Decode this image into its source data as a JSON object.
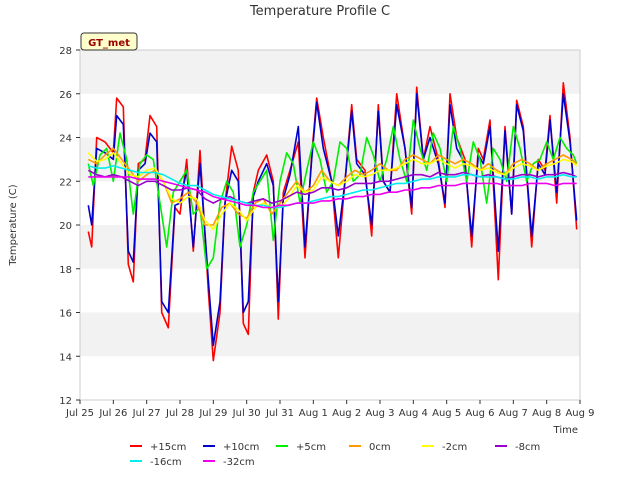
{
  "chart_data": {
    "type": "line",
    "title": "Temperature Profile C",
    "xlabel": "Time",
    "ylabel": "Temperature (C)",
    "ylim": [
      12,
      28
    ],
    "yticks": [
      12,
      14,
      16,
      18,
      20,
      22,
      24,
      26,
      28
    ],
    "xlim": [
      0,
      15
    ],
    "xtick_labels": [
      "Jul 25",
      "Jul 26",
      "Jul 27",
      "Jul 28",
      "Jul 29",
      "Jul 30",
      "Jul 31",
      "Aug 1",
      "Aug 2",
      "Aug 3",
      "Aug 4",
      "Aug 5",
      "Aug 6",
      "Aug 7",
      "Aug 8",
      "Aug 9"
    ],
    "x_unit": "days since Jul 25",
    "station_badge": "GT_met",
    "grid": "horizontal bands",
    "legend_position": "bottom",
    "series": [
      {
        "name": "+15cm",
        "color": "#ff0000",
        "x": [
          0.25,
          0.35,
          0.5,
          0.75,
          1.0,
          1.1,
          1.3,
          1.45,
          1.6,
          1.75,
          1.95,
          2.1,
          2.3,
          2.45,
          2.65,
          2.85,
          3.0,
          3.2,
          3.4,
          3.6,
          3.85,
          4.0,
          4.2,
          4.35,
          4.55,
          4.75,
          4.9,
          5.05,
          5.2,
          5.35,
          5.6,
          5.8,
          5.95,
          6.1,
          6.3,
          6.55,
          6.75,
          6.95,
          7.1,
          7.3,
          7.55,
          7.75,
          7.95,
          8.15,
          8.3,
          8.55,
          8.75,
          8.95,
          9.1,
          9.3,
          9.5,
          9.75,
          9.95,
          10.1,
          10.3,
          10.5,
          10.75,
          10.95,
          11.1,
          11.3,
          11.55,
          11.75,
          11.95,
          12.1,
          12.3,
          12.55,
          12.75,
          12.95,
          13.1,
          13.3,
          13.55,
          13.75,
          13.95,
          14.1,
          14.3,
          14.5,
          14.7,
          14.9
        ],
        "y": [
          19.7,
          19.0,
          24.0,
          23.8,
          23.3,
          25.8,
          25.4,
          18.2,
          17.4,
          22.8,
          23.0,
          25.0,
          24.5,
          16.0,
          15.3,
          20.8,
          20.5,
          23.0,
          18.8,
          23.4,
          17.0,
          13.8,
          16.0,
          21.0,
          23.6,
          22.5,
          15.5,
          15.0,
          21.5,
          22.5,
          23.2,
          22.0,
          15.7,
          21.5,
          22.5,
          23.8,
          18.5,
          23.2,
          25.8,
          24.0,
          22.0,
          18.5,
          22.0,
          25.5,
          23.0,
          22.5,
          19.5,
          25.5,
          22.0,
          21.5,
          26.0,
          23.5,
          20.5,
          26.3,
          23.0,
          24.5,
          23.0,
          20.8,
          26.0,
          24.0,
          23.0,
          19.0,
          23.5,
          23.0,
          24.8,
          17.5,
          24.5,
          20.5,
          25.7,
          24.5,
          19.0,
          23.0,
          22.5,
          25.0,
          21.0,
          26.5,
          24.0,
          19.8
        ]
      },
      {
        "name": "+10cm",
        "color": "#0000cc",
        "x": [
          0.25,
          0.35,
          0.5,
          0.75,
          1.0,
          1.1,
          1.3,
          1.45,
          1.6,
          1.75,
          1.95,
          2.1,
          2.3,
          2.45,
          2.65,
          2.85,
          3.0,
          3.2,
          3.4,
          3.6,
          3.85,
          4.0,
          4.2,
          4.35,
          4.55,
          4.75,
          4.9,
          5.05,
          5.2,
          5.35,
          5.6,
          5.8,
          5.95,
          6.1,
          6.3,
          6.55,
          6.75,
          6.95,
          7.1,
          7.3,
          7.55,
          7.75,
          7.95,
          8.15,
          8.3,
          8.55,
          8.75,
          8.95,
          9.1,
          9.3,
          9.5,
          9.75,
          9.95,
          10.1,
          10.3,
          10.5,
          10.75,
          10.95,
          11.1,
          11.3,
          11.55,
          11.75,
          11.95,
          12.1,
          12.3,
          12.55,
          12.75,
          12.95,
          13.1,
          13.3,
          13.55,
          13.75,
          13.95,
          14.1,
          14.3,
          14.5,
          14.7,
          14.9
        ],
        "y": [
          20.9,
          20.0,
          23.5,
          23.3,
          23.0,
          25.0,
          24.6,
          18.8,
          18.3,
          22.5,
          22.8,
          24.2,
          23.8,
          16.5,
          16.0,
          20.9,
          21.0,
          22.5,
          19.0,
          22.8,
          17.5,
          14.5,
          16.5,
          21.0,
          22.5,
          22.0,
          16.0,
          16.5,
          21.3,
          22.0,
          22.8,
          21.8,
          16.5,
          21.2,
          22.3,
          24.5,
          19.0,
          23.0,
          25.6,
          23.5,
          22.0,
          19.5,
          22.0,
          25.2,
          22.8,
          22.3,
          20.0,
          25.2,
          22.0,
          21.5,
          25.5,
          23.5,
          20.8,
          26.0,
          23.0,
          24.0,
          22.8,
          21.0,
          25.5,
          23.5,
          22.8,
          19.5,
          23.2,
          22.8,
          24.5,
          18.8,
          24.3,
          20.5,
          25.5,
          24.3,
          19.5,
          22.8,
          22.3,
          24.8,
          21.5,
          26.0,
          23.8,
          20.2
        ]
      },
      {
        "name": "+5cm",
        "color": "#00ee00",
        "x": [
          0.25,
          0.4,
          0.6,
          0.8,
          1.0,
          1.2,
          1.4,
          1.6,
          1.8,
          2.0,
          2.2,
          2.4,
          2.6,
          2.8,
          3.0,
          3.2,
          3.4,
          3.6,
          3.8,
          4.0,
          4.2,
          4.4,
          4.6,
          4.8,
          5.0,
          5.2,
          5.4,
          5.6,
          5.8,
          6.0,
          6.2,
          6.4,
          6.6,
          6.8,
          7.0,
          7.2,
          7.4,
          7.6,
          7.8,
          8.0,
          8.2,
          8.4,
          8.6,
          8.8,
          9.0,
          9.2,
          9.4,
          9.6,
          9.8,
          10.0,
          10.2,
          10.4,
          10.6,
          10.8,
          11.0,
          11.2,
          11.4,
          11.6,
          11.8,
          12.0,
          12.2,
          12.4,
          12.6,
          12.8,
          13.0,
          13.2,
          13.4,
          13.6,
          13.8,
          14.0,
          14.2,
          14.4,
          14.6,
          14.8,
          14.9
        ],
        "y": [
          22.8,
          21.8,
          23.2,
          23.5,
          22.0,
          24.2,
          23.0,
          20.5,
          22.8,
          23.2,
          23.0,
          21.0,
          19.0,
          21.5,
          22.0,
          22.5,
          20.5,
          20.8,
          18.0,
          18.5,
          21.0,
          22.0,
          21.5,
          19.0,
          20.0,
          21.5,
          22.0,
          22.5,
          19.3,
          22.0,
          23.3,
          22.8,
          21.0,
          22.5,
          23.8,
          23.0,
          21.5,
          22.0,
          23.8,
          23.5,
          22.0,
          22.3,
          24.0,
          23.2,
          22.0,
          23.0,
          24.5,
          23.0,
          22.0,
          24.8,
          23.5,
          22.5,
          24.2,
          23.5,
          22.0,
          24.5,
          23.5,
          22.0,
          23.8,
          23.0,
          21.0,
          23.5,
          23.0,
          22.0,
          24.5,
          23.5,
          22.0,
          22.8,
          23.0,
          23.8,
          23.0,
          24.0,
          23.5,
          23.2,
          22.8
        ]
      },
      {
        "name": "0cm",
        "color": "#ff9900",
        "x": [
          0.25,
          0.5,
          0.75,
          1.0,
          1.25,
          1.5,
          1.75,
          2.0,
          2.25,
          2.5,
          2.75,
          3.0,
          3.25,
          3.5,
          3.75,
          4.0,
          4.25,
          4.5,
          4.75,
          5.0,
          5.25,
          5.5,
          5.75,
          6.0,
          6.25,
          6.5,
          6.75,
          7.0,
          7.25,
          7.5,
          7.75,
          8.0,
          8.25,
          8.5,
          8.75,
          9.0,
          9.25,
          9.5,
          9.75,
          10.0,
          10.25,
          10.5,
          10.75,
          11.0,
          11.25,
          11.5,
          11.75,
          12.0,
          12.25,
          12.5,
          12.75,
          13.0,
          13.25,
          13.5,
          13.75,
          14.0,
          14.25,
          14.5,
          14.75,
          14.9
        ],
        "y": [
          23.0,
          22.8,
          23.2,
          23.5,
          23.0,
          22.5,
          22.0,
          22.3,
          22.5,
          22.0,
          21.0,
          21.2,
          21.5,
          21.0,
          20.0,
          20.0,
          20.8,
          21.0,
          20.5,
          20.3,
          21.0,
          21.2,
          20.5,
          21.0,
          21.5,
          22.0,
          21.5,
          21.8,
          22.5,
          22.0,
          21.8,
          22.2,
          22.5,
          22.3,
          22.5,
          22.8,
          22.5,
          22.5,
          23.0,
          23.2,
          23.0,
          22.8,
          23.2,
          23.0,
          22.8,
          23.0,
          22.8,
          22.5,
          22.8,
          22.5,
          22.3,
          22.8,
          23.0,
          22.8,
          22.5,
          22.8,
          23.0,
          23.2,
          23.0,
          22.8
        ]
      },
      {
        "name": "-2cm",
        "color": "#ffff00",
        "x": [
          0.25,
          0.5,
          0.75,
          1.0,
          1.25,
          1.5,
          1.75,
          2.0,
          2.25,
          2.5,
          2.75,
          3.0,
          3.25,
          3.5,
          3.75,
          4.0,
          4.25,
          4.5,
          4.75,
          5.0,
          5.25,
          5.5,
          5.75,
          6.0,
          6.25,
          6.5,
          6.75,
          7.0,
          7.25,
          7.5,
          7.75,
          8.0,
          8.25,
          8.5,
          8.75,
          9.0,
          9.25,
          9.5,
          9.75,
          10.0,
          10.25,
          10.5,
          10.75,
          11.0,
          11.25,
          11.5,
          11.75,
          12.0,
          12.25,
          12.5,
          12.75,
          13.0,
          13.25,
          13.5,
          13.75,
          14.0,
          14.25,
          14.5,
          14.75,
          14.9
        ],
        "y": [
          23.3,
          22.9,
          23.0,
          23.3,
          22.8,
          22.3,
          22.2,
          22.5,
          22.6,
          22.0,
          21.2,
          21.0,
          21.3,
          21.2,
          20.2,
          19.8,
          20.5,
          21.0,
          20.7,
          20.2,
          20.8,
          21.0,
          20.8,
          20.8,
          21.2,
          21.8,
          21.5,
          21.6,
          22.2,
          22.0,
          21.8,
          22.0,
          22.3,
          22.2,
          22.3,
          22.5,
          22.5,
          22.6,
          22.8,
          23.0,
          22.8,
          22.8,
          23.0,
          22.8,
          22.6,
          22.8,
          22.7,
          22.5,
          22.6,
          22.4,
          22.3,
          22.6,
          22.8,
          22.7,
          22.5,
          22.7,
          22.8,
          23.0,
          22.9,
          22.7
        ]
      },
      {
        "name": "-8cm",
        "color": "#9900cc",
        "x": [
          0.25,
          0.5,
          0.75,
          1.0,
          1.25,
          1.5,
          1.75,
          2.0,
          2.25,
          2.5,
          2.75,
          3.0,
          3.25,
          3.5,
          3.75,
          4.0,
          4.25,
          4.5,
          4.75,
          5.0,
          5.25,
          5.5,
          5.75,
          6.0,
          6.25,
          6.5,
          6.75,
          7.0,
          7.25,
          7.5,
          7.75,
          8.0,
          8.25,
          8.5,
          8.75,
          9.0,
          9.25,
          9.5,
          9.75,
          10.0,
          10.25,
          10.5,
          10.75,
          11.0,
          11.25,
          11.5,
          11.75,
          12.0,
          12.25,
          12.5,
          12.75,
          13.0,
          13.25,
          13.5,
          13.75,
          14.0,
          14.25,
          14.5,
          14.75,
          14.9
        ],
        "y": [
          22.5,
          22.3,
          22.2,
          22.3,
          22.2,
          22.0,
          21.8,
          22.0,
          22.0,
          21.8,
          21.6,
          21.6,
          21.7,
          21.6,
          21.2,
          21.0,
          21.2,
          21.3,
          21.1,
          21.0,
          21.1,
          21.2,
          21.0,
          21.1,
          21.3,
          21.5,
          21.4,
          21.5,
          21.7,
          21.7,
          21.6,
          21.7,
          21.9,
          21.9,
          21.9,
          22.0,
          22.0,
          22.1,
          22.2,
          22.3,
          22.3,
          22.2,
          22.4,
          22.3,
          22.3,
          22.4,
          22.3,
          22.2,
          22.3,
          22.2,
          22.1,
          22.2,
          22.3,
          22.3,
          22.2,
          22.3,
          22.3,
          22.4,
          22.3,
          22.2
        ]
      },
      {
        "name": "-16cm",
        "color": "#00eeee",
        "x": [
          0.25,
          0.5,
          0.75,
          1.0,
          1.25,
          1.5,
          1.75,
          2.0,
          2.25,
          2.5,
          2.75,
          3.0,
          3.25,
          3.5,
          3.75,
          4.0,
          4.25,
          4.5,
          4.75,
          5.0,
          5.25,
          5.5,
          5.75,
          6.0,
          6.25,
          6.5,
          6.75,
          7.0,
          7.25,
          7.5,
          7.75,
          8.0,
          8.25,
          8.5,
          8.75,
          9.0,
          9.25,
          9.5,
          9.75,
          10.0,
          10.25,
          10.5,
          10.75,
          11.0,
          11.25,
          11.5,
          11.75,
          12.0,
          12.25,
          12.5,
          12.75,
          13.0,
          13.25,
          13.5,
          13.75,
          14.0,
          14.25,
          14.5,
          14.75,
          14.9
        ],
        "y": [
          22.7,
          22.6,
          22.6,
          22.7,
          22.6,
          22.5,
          22.4,
          22.4,
          22.4,
          22.3,
          22.1,
          21.9,
          21.8,
          21.8,
          21.6,
          21.4,
          21.3,
          21.2,
          21.1,
          21.0,
          20.9,
          20.9,
          20.8,
          20.8,
          20.9,
          21.0,
          21.0,
          21.1,
          21.2,
          21.3,
          21.3,
          21.4,
          21.5,
          21.6,
          21.6,
          21.7,
          21.8,
          21.9,
          21.9,
          22.0,
          22.1,
          22.1,
          22.2,
          22.2,
          22.2,
          22.3,
          22.3,
          22.2,
          22.2,
          22.2,
          22.1,
          22.1,
          22.2,
          22.2,
          22.1,
          22.2,
          22.2,
          22.3,
          22.2,
          22.2
        ]
      },
      {
        "name": "-32cm",
        "color": "#ee00ee",
        "x": [
          0.25,
          0.5,
          0.75,
          1.0,
          1.25,
          1.5,
          1.75,
          2.0,
          2.25,
          2.5,
          2.75,
          3.0,
          3.25,
          3.5,
          3.75,
          4.0,
          4.25,
          4.5,
          4.75,
          5.0,
          5.25,
          5.5,
          5.75,
          6.0,
          6.25,
          6.5,
          6.75,
          7.0,
          7.25,
          7.5,
          7.75,
          8.0,
          8.25,
          8.5,
          8.75,
          9.0,
          9.25,
          9.5,
          9.75,
          10.0,
          10.25,
          10.5,
          10.75,
          11.0,
          11.25,
          11.5,
          11.75,
          12.0,
          12.25,
          12.5,
          12.75,
          13.0,
          13.25,
          13.5,
          13.75,
          14.0,
          14.25,
          14.5,
          14.75,
          14.9
        ],
        "y": [
          22.2,
          22.2,
          22.2,
          22.2,
          22.2,
          22.2,
          22.1,
          22.1,
          22.1,
          22.0,
          21.9,
          21.8,
          21.7,
          21.6,
          21.5,
          21.3,
          21.2,
          21.1,
          21.0,
          20.9,
          20.9,
          20.8,
          20.8,
          20.9,
          20.9,
          21.0,
          21.0,
          21.0,
          21.1,
          21.1,
          21.2,
          21.2,
          21.3,
          21.3,
          21.4,
          21.4,
          21.5,
          21.5,
          21.6,
          21.6,
          21.7,
          21.7,
          21.8,
          21.8,
          21.8,
          21.9,
          21.9,
          21.9,
          21.9,
          21.9,
          21.8,
          21.8,
          21.8,
          21.9,
          21.9,
          21.9,
          21.8,
          21.9,
          21.9,
          21.9
        ]
      }
    ]
  }
}
